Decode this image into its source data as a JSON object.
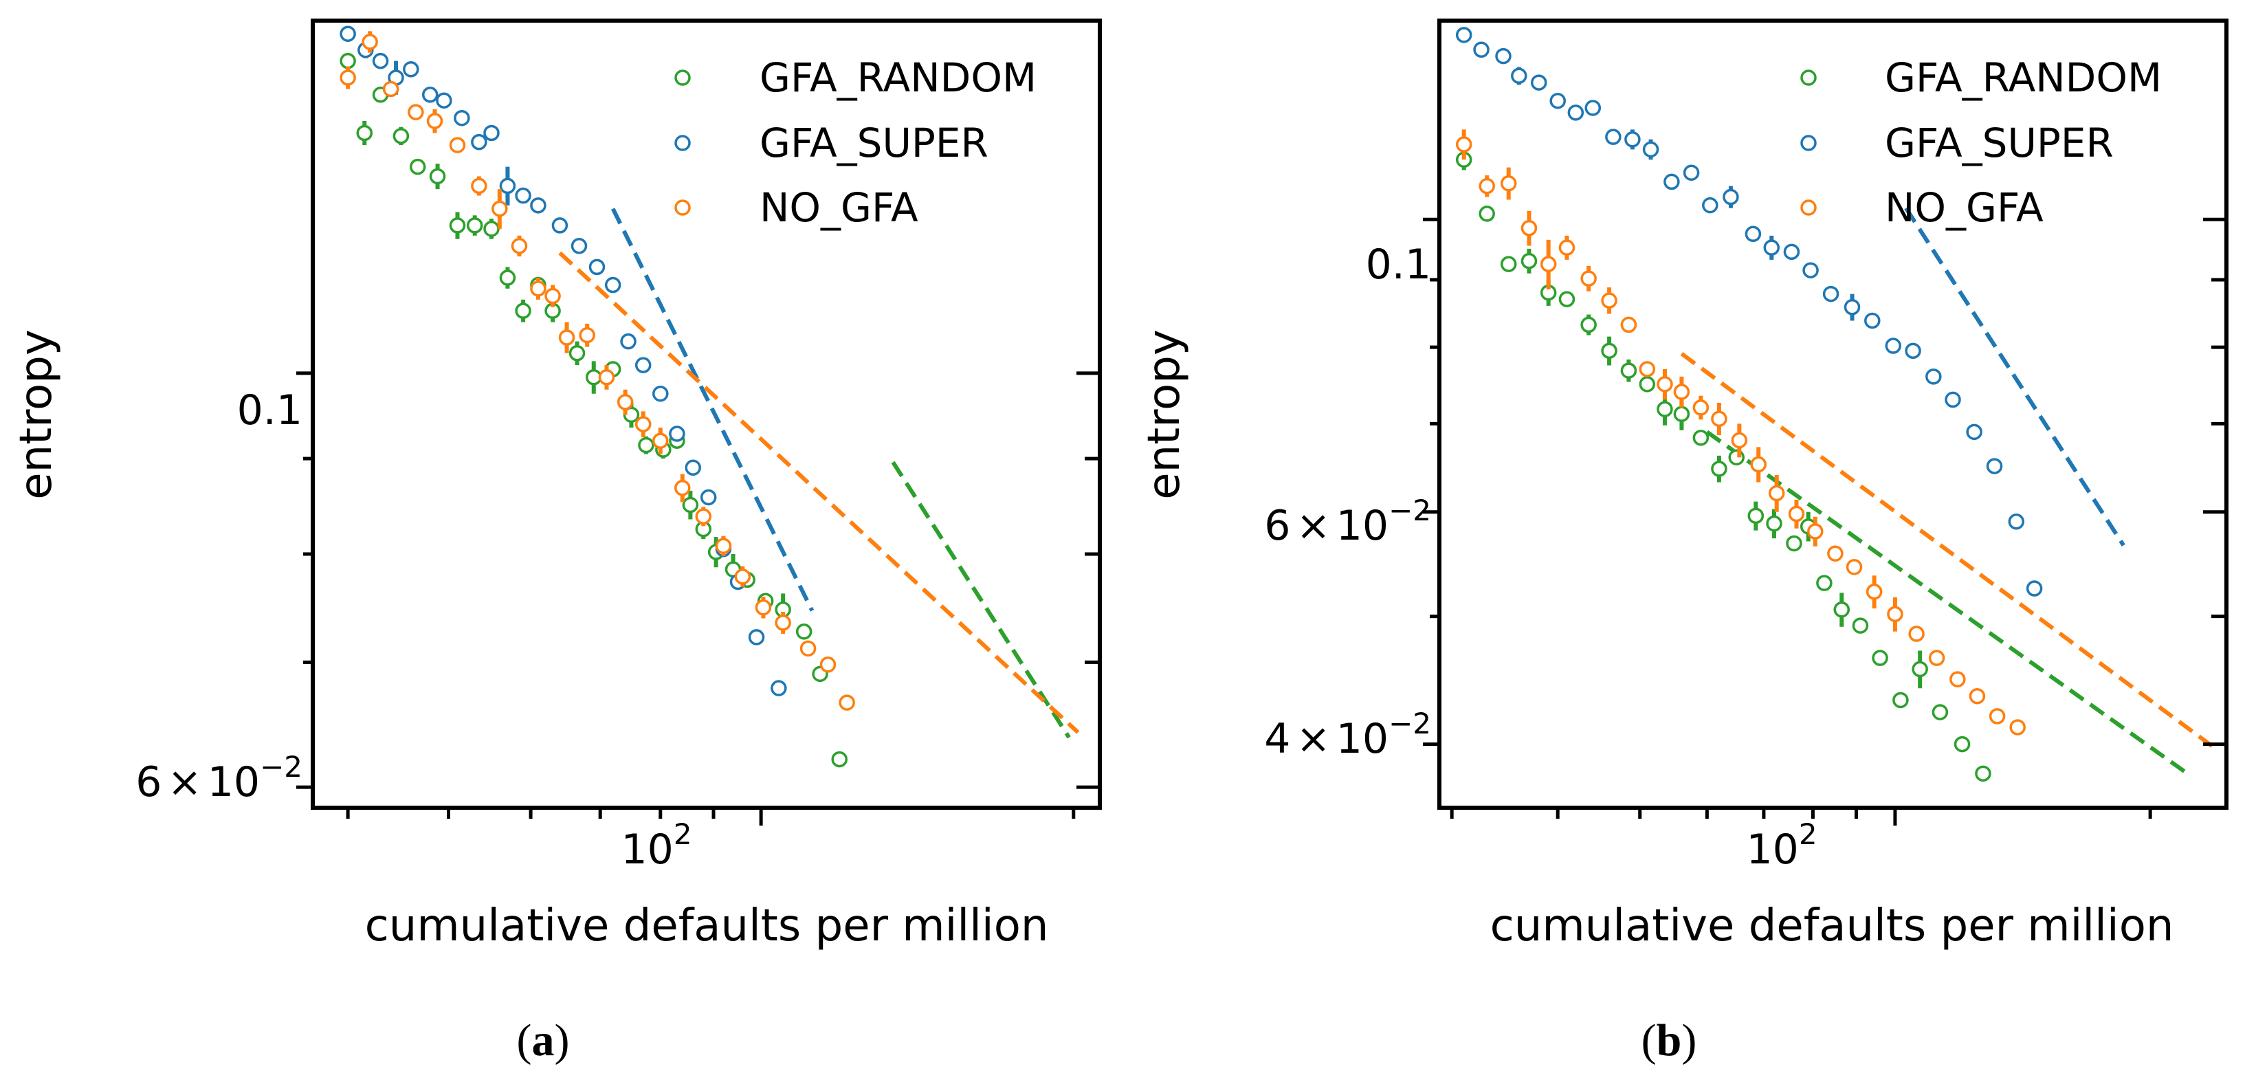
{
  "colors": {
    "GFA_RANDOM": "#2ca02c",
    "GFA_SUPER": "#1f77b4",
    "NO_GFA": "#ff7f0e"
  },
  "chart_data": [
    {
      "type": "scatter",
      "panel": "a",
      "caption": "(a)",
      "xlabel": "cumulative defaults per million",
      "ylabel": "entropy",
      "xscale": "log",
      "yscale": "log",
      "xlim": [
        37,
        212
      ],
      "ylim": [
        0.0585,
        0.1545
      ],
      "x_major_ticks": [
        {
          "value": 100,
          "base": "10",
          "exp": "2"
        }
      ],
      "y_major_ticks": [
        {
          "value": 0.1,
          "label": "0.1"
        },
        {
          "value": 0.06,
          "mant": "6",
          "times": "×",
          "base": "10",
          "exp": "−2"
        }
      ],
      "y_minor_ticks": [
        0.07,
        0.08,
        0.09
      ],
      "legend": {
        "position": "top-right",
        "entries": [
          "GFA_RANDOM",
          "GFA_SUPER",
          "NO_GFA"
        ]
      },
      "series": [
        {
          "name": "GFA_RANDOM",
          "fit_x": [
            134,
            198
          ],
          "fit_y": [
            0.0896,
            0.0638
          ],
          "points": [
            [
              40,
              0.147,
              0
            ],
            [
              41.5,
              0.1345,
              0.002
            ],
            [
              43,
              0.141,
              0
            ],
            [
              45,
              0.134,
              0.0015
            ],
            [
              46.7,
              0.129,
              0
            ],
            [
              48.8,
              0.1275,
              0.002
            ],
            [
              51,
              0.12,
              0.002
            ],
            [
              53,
              0.12,
              0.0015
            ],
            [
              55,
              0.1195,
              0.0015
            ],
            [
              57,
              0.1125,
              0.0015
            ],
            [
              59,
              0.108,
              0.0015
            ],
            [
              61,
              0.1115,
              0
            ],
            [
              63,
              0.108,
              0.0015
            ],
            [
              66.5,
              0.1025,
              0.0015
            ],
            [
              69,
              0.0995,
              0.002
            ],
            [
              72,
              0.1005,
              0
            ],
            [
              75,
              0.095,
              0.0015
            ],
            [
              77.5,
              0.0915,
              0.001
            ],
            [
              80.5,
              0.091,
              0.001
            ],
            [
              83,
              0.092,
              0
            ],
            [
              85.5,
              0.085,
              0.0015
            ],
            [
              88,
              0.0825,
              0.001
            ],
            [
              90.5,
              0.0802,
              0.0015
            ],
            [
              94,
              0.0785,
              0.0015
            ],
            [
              97,
              0.0775,
              0
            ],
            [
              101,
              0.0755,
              0
            ],
            [
              105,
              0.0747,
              0.0015
            ],
            [
              110,
              0.0727,
              0
            ],
            [
              114,
              0.069,
              0
            ],
            [
              119,
              0.0621,
              0
            ]
          ]
        },
        {
          "name": "GFA_SUPER",
          "fit_x": [
            72,
            112
          ],
          "fit_y": [
            0.1225,
            0.0746
          ],
          "points": [
            [
              40,
              0.152,
              0
            ],
            [
              41.6,
              0.149,
              0.0015
            ],
            [
              43,
              0.147,
              0
            ],
            [
              44.5,
              0.144,
              0.003
            ],
            [
              46,
              0.1455,
              0
            ],
            [
              48,
              0.141,
              0
            ],
            [
              49.5,
              0.14,
              0
            ],
            [
              51.5,
              0.137,
              0
            ],
            [
              53.5,
              0.133,
              0
            ],
            [
              55,
              0.1345,
              0
            ],
            [
              57,
              0.126,
              0.003
            ],
            [
              59,
              0.1245,
              0
            ],
            [
              61,
              0.123,
              0
            ],
            [
              64,
              0.12,
              0
            ],
            [
              66.8,
              0.117,
              0
            ],
            [
              69.5,
              0.114,
              0
            ],
            [
              72,
              0.1115,
              0
            ],
            [
              74.5,
              0.104,
              0
            ],
            [
              77,
              0.101,
              0
            ],
            [
              80,
              0.0975,
              0
            ],
            [
              83,
              0.0928,
              0
            ],
            [
              86,
              0.089,
              0
            ],
            [
              89,
              0.0858,
              0
            ],
            [
              92,
              0.0805,
              0
            ],
            [
              95,
              0.0773,
              0
            ],
            [
              99,
              0.0722,
              0
            ],
            [
              104,
              0.0678,
              0
            ]
          ]
        },
        {
          "name": "NO_GFA",
          "fit_x": [
            64,
            202
          ],
          "fit_y": [
            0.116,
            0.0642
          ],
          "points": [
            [
              40,
              0.144,
              0.002
            ],
            [
              42,
              0.1505,
              0.002
            ],
            [
              44,
              0.142,
              0
            ],
            [
              46.5,
              0.138,
              0
            ],
            [
              48.5,
              0.1365,
              0.002
            ],
            [
              51,
              0.1325,
              0
            ],
            [
              53.5,
              0.126,
              0.0015
            ],
            [
              56,
              0.1225,
              0.003
            ],
            [
              58.5,
              0.117,
              0.0015
            ],
            [
              61,
              0.111,
              0.0015
            ],
            [
              63,
              0.11,
              0.0015
            ],
            [
              65,
              0.1045,
              0.002
            ],
            [
              68,
              0.1048,
              0.0015
            ],
            [
              71,
              0.0995,
              0.0015
            ],
            [
              74,
              0.0965,
              0.0015
            ],
            [
              77,
              0.0939,
              0.0015
            ],
            [
              80,
              0.092,
              0.0015
            ],
            [
              84,
              0.0868,
              0.0015
            ],
            [
              88,
              0.0838,
              0.001
            ],
            [
              92,
              0.0808,
              0.001
            ],
            [
              96,
              0.0778,
              0.001
            ],
            [
              100.5,
              0.0749,
              0.001
            ],
            [
              105,
              0.0735,
              0.001
            ],
            [
              111,
              0.0712,
              0
            ],
            [
              116,
              0.0698,
              0
            ],
            [
              121,
              0.0666,
              0
            ]
          ]
        }
      ]
    },
    {
      "type": "scatter",
      "panel": "b",
      "caption": "(b)",
      "xlabel": "cumulative defaults per million",
      "ylabel": "entropy",
      "xscale": "log",
      "yscale": "log",
      "xlim": [
        29,
        246
      ],
      "ylim": [
        0.0358,
        0.1415
      ],
      "x_major_ticks": [
        {
          "value": 100,
          "base": "10",
          "exp": "2"
        }
      ],
      "y_major_ticks": [
        {
          "value": 0.1,
          "label": "0.1"
        },
        {
          "value": 0.06,
          "mant": "6",
          "times": "×",
          "base": "10",
          "exp": "−2"
        },
        {
          "value": 0.04,
          "mant": "4",
          "times": "×",
          "base": "10",
          "exp": "−2"
        }
      ],
      "y_minor_ticks": [
        0.05,
        0.07,
        0.08,
        0.09
      ],
      "legend": {
        "position": "top-right",
        "entries": [
          "GFA_RANDOM",
          "GFA_SUPER",
          "NO_GFA"
        ]
      },
      "series": [
        {
          "name": "GFA_RANDOM",
          "fit_x": [
            60,
            220
          ],
          "fit_y": [
            0.069,
            0.0381
          ],
          "points": [
            [
              31,
              0.111,
              0.002
            ],
            [
              33,
              0.101,
              0
            ],
            [
              35,
              0.0925,
              0
            ],
            [
              37,
              0.093,
              0.002
            ],
            [
              39,
              0.088,
              0.002
            ],
            [
              41,
              0.087,
              0
            ],
            [
              43.5,
              0.0832,
              0.0015
            ],
            [
              46,
              0.0795,
              0.002
            ],
            [
              48.5,
              0.0768,
              0.0015
            ],
            [
              51,
              0.075,
              0
            ],
            [
              53.5,
              0.0718,
              0.002
            ],
            [
              56,
              0.0712,
              0.002
            ],
            [
              59,
              0.0683,
              0
            ],
            [
              62,
              0.0647,
              0.0015
            ],
            [
              65,
              0.066,
              0
            ],
            [
              68.5,
              0.0596,
              0.0015
            ],
            [
              72,
              0.0588,
              0.0015
            ],
            [
              76,
              0.0568,
              0
            ],
            [
              79,
              0.0585,
              0.0015
            ],
            [
              82.5,
              0.053,
              0
            ],
            [
              86.5,
              0.0506,
              0.0015
            ],
            [
              91,
              0.0492,
              0
            ],
            [
              96,
              0.0465,
              0
            ],
            [
              101.5,
              0.0432,
              0
            ],
            [
              107,
              0.0456,
              0.0015
            ],
            [
              113,
              0.0423,
              0
            ],
            [
              120,
              0.04,
              0
            ],
            [
              127,
              0.038,
              0
            ]
          ]
        },
        {
          "name": "GFA_SUPER",
          "fit_x": [
            103,
            186
          ],
          "fit_y": [
            0.102,
            0.0566
          ],
          "points": [
            [
              31,
              0.138,
              0
            ],
            [
              32.5,
              0.1345,
              0
            ],
            [
              34.5,
              0.133,
              0
            ],
            [
              36,
              0.1285,
              0.002
            ],
            [
              38,
              0.127,
              0
            ],
            [
              40,
              0.123,
              0
            ],
            [
              42,
              0.1205,
              0
            ],
            [
              44,
              0.1215,
              0
            ],
            [
              46.5,
              0.1155,
              0
            ],
            [
              49,
              0.115,
              0.002
            ],
            [
              51.5,
              0.113,
              0.002
            ],
            [
              54.5,
              0.1068,
              0
            ],
            [
              57.5,
              0.1085,
              0
            ],
            [
              60.5,
              0.1025,
              0
            ],
            [
              64,
              0.104,
              0.002
            ],
            [
              68,
              0.0975,
              0
            ],
            [
              71.5,
              0.0952,
              0.002
            ],
            [
              75.5,
              0.0945,
              0
            ],
            [
              79.5,
              0.0915,
              0
            ],
            [
              84,
              0.0878,
              0
            ],
            [
              89,
              0.0858,
              0.002
            ],
            [
              94,
              0.0838,
              0
            ],
            [
              99.5,
              0.0802,
              0
            ],
            [
              105,
              0.0795,
              0
            ],
            [
              111,
              0.076,
              0
            ],
            [
              117,
              0.073,
              0
            ],
            [
              124,
              0.069,
              0
            ],
            [
              131,
              0.065,
              0
            ],
            [
              139,
              0.059,
              0
            ],
            [
              146,
              0.0525,
              0
            ]
          ]
        },
        {
          "name": "NO_GFA",
          "fit_x": [
            56,
            240
          ],
          "fit_y": [
            0.0791,
            0.0396
          ],
          "points": [
            [
              31,
              0.114,
              0.003
            ],
            [
              33,
              0.106,
              0.002
            ],
            [
              35,
              0.1065,
              0.003
            ],
            [
              37,
              0.0985,
              0.003
            ],
            [
              39,
              0.0925,
              0.004
            ],
            [
              41,
              0.0952,
              0.002
            ],
            [
              43.5,
              0.0902,
              0.002
            ],
            [
              46,
              0.0868,
              0.002
            ],
            [
              48.5,
              0.0832,
              0
            ],
            [
              51,
              0.077,
              0
            ],
            [
              53.5,
              0.075,
              0.002
            ],
            [
              56,
              0.074,
              0.002
            ],
            [
              59,
              0.072,
              0.0015
            ],
            [
              62,
              0.0706,
              0.002
            ],
            [
              65.5,
              0.068,
              0.002
            ],
            [
              69,
              0.0652,
              0.002
            ],
            [
              72.5,
              0.062,
              0.002
            ],
            [
              76.5,
              0.0598,
              0.0015
            ],
            [
              80.5,
              0.058,
              0.0015
            ],
            [
              85,
              0.0558,
              0
            ],
            [
              89.5,
              0.0545,
              0
            ],
            [
              94.5,
              0.0522,
              0.0015
            ],
            [
              100,
              0.0502,
              0.0015
            ],
            [
              106,
              0.0485,
              0
            ],
            [
              112,
              0.0465,
              0
            ],
            [
              118.5,
              0.0448,
              0
            ],
            [
              125,
              0.0435,
              0
            ],
            [
              132,
              0.042,
              0
            ],
            [
              139.5,
              0.0412,
              0
            ]
          ]
        }
      ]
    }
  ]
}
